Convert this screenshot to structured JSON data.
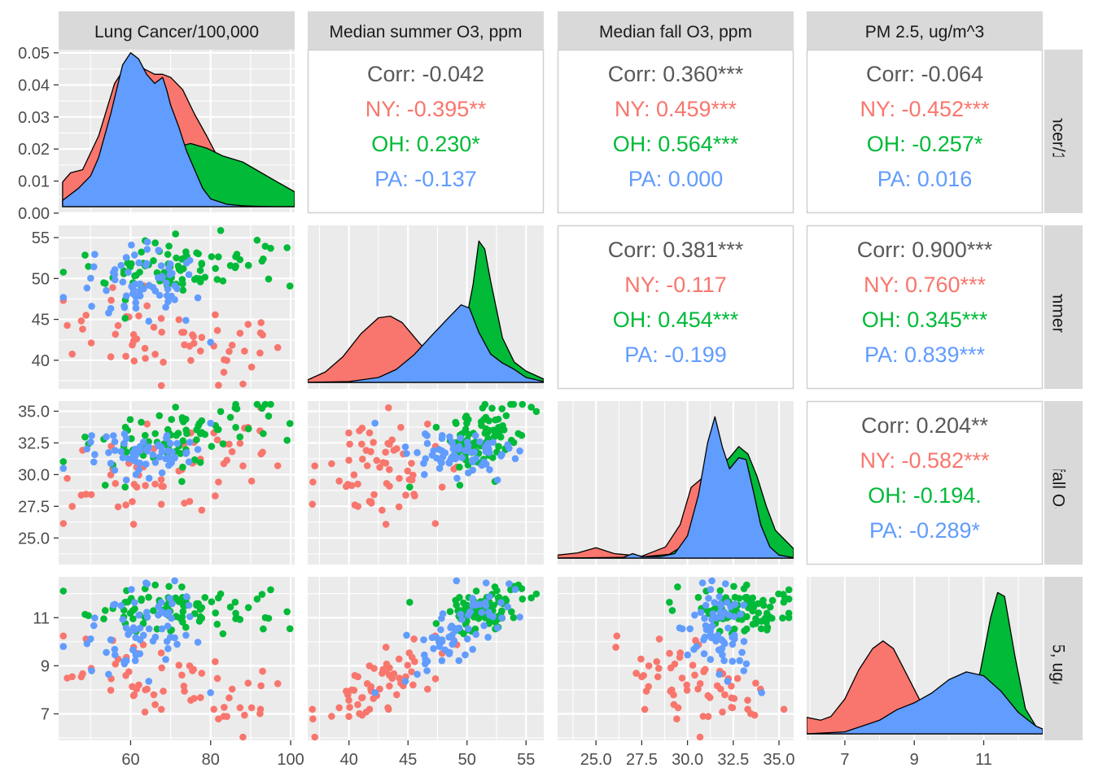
{
  "chart_data": {
    "type": "scatter",
    "figure_type": "pairs-matrix",
    "background": "#ffffff",
    "panel_background": "#ebebeb",
    "strip_background": "#d9d9d9",
    "gridline_color": "#ffffff",
    "grid": true,
    "legend": "none",
    "group_colors": {
      "NY": "#F8766D",
      "OH": "#00BA38",
      "PA": "#619CFF",
      "overall": "#595959"
    },
    "variables": [
      "Lung Cancer/100,000",
      "Median summer O3, ppm",
      "Median fall O3, ppm",
      "PM 2.5, ug/m^3"
    ],
    "variable_axes": [
      {
        "range": [
          42,
          101
        ],
        "ticks": [
          60,
          80,
          100
        ],
        "tick_labels": [
          "60",
          "80",
          "100"
        ]
      },
      {
        "range": [
          36.5,
          56.5
        ],
        "ticks": [
          40,
          45,
          50,
          55
        ],
        "tick_labels": [
          "40",
          "45",
          "50",
          "55"
        ]
      },
      {
        "range": [
          22.9,
          35.8
        ],
        "ticks": [
          25.0,
          27.5,
          30.0,
          32.5,
          35.0
        ],
        "tick_labels": [
          "25.0",
          "27.5",
          "30.0",
          "32.5",
          "35.0"
        ]
      },
      {
        "range": [
          5.9,
          12.7
        ],
        "ticks": [
          7,
          9,
          11
        ],
        "tick_labels": [
          "7",
          "9",
          "11"
        ]
      }
    ],
    "density_y_axis": {
      "range": [
        0,
        0.051
      ],
      "ticks": [
        0.0,
        0.01,
        0.02,
        0.03,
        0.04,
        0.05
      ],
      "tick_labels": [
        "0.00",
        "0.01",
        "0.02",
        "0.03",
        "0.04",
        "0.05"
      ]
    },
    "correlations": [
      {
        "row": 0,
        "col": 1,
        "lines": [
          {
            "group": "overall",
            "text": "Corr: -0.042"
          },
          {
            "group": "NY",
            "text": "NY: -0.395**"
          },
          {
            "group": "OH",
            "text": "OH: 0.230*"
          },
          {
            "group": "PA",
            "text": "PA: -0.137"
          }
        ]
      },
      {
        "row": 0,
        "col": 2,
        "lines": [
          {
            "group": "overall",
            "text": "Corr: 0.360***"
          },
          {
            "group": "NY",
            "text": "NY: 0.459***"
          },
          {
            "group": "OH",
            "text": "OH: 0.564***"
          },
          {
            "group": "PA",
            "text": "PA: 0.000"
          }
        ]
      },
      {
        "row": 0,
        "col": 3,
        "lines": [
          {
            "group": "overall",
            "text": "Corr: -0.064"
          },
          {
            "group": "NY",
            "text": "NY: -0.452***"
          },
          {
            "group": "OH",
            "text": "OH: -0.257*"
          },
          {
            "group": "PA",
            "text": "PA: 0.016"
          }
        ]
      },
      {
        "row": 1,
        "col": 2,
        "lines": [
          {
            "group": "overall",
            "text": "Corr: 0.381***"
          },
          {
            "group": "NY",
            "text": "NY: -0.117"
          },
          {
            "group": "OH",
            "text": "OH: 0.454***"
          },
          {
            "group": "PA",
            "text": "PA: -0.199"
          }
        ]
      },
      {
        "row": 1,
        "col": 3,
        "lines": [
          {
            "group": "overall",
            "text": "Corr: 0.900***"
          },
          {
            "group": "NY",
            "text": "NY: 0.760***"
          },
          {
            "group": "OH",
            "text": "OH: 0.345***"
          },
          {
            "group": "PA",
            "text": "PA: 0.839***"
          }
        ]
      },
      {
        "row": 2,
        "col": 3,
        "lines": [
          {
            "group": "overall",
            "text": "Corr: 0.204**"
          },
          {
            "group": "NY",
            "text": "NY: -0.582***"
          },
          {
            "group": "OH",
            "text": "OH: -0.194."
          },
          {
            "group": "PA",
            "text": "PA: -0.289*"
          }
        ]
      }
    ],
    "densities": [
      {
        "var": 0,
        "series": [
          {
            "group": "NY",
            "x": [
              43,
              45,
              48,
              52,
              56,
              60,
              63,
              66,
              68,
              70,
              73,
              76,
              79,
              81,
              84,
              88,
              92,
              96,
              101
            ],
            "y": [
              0.008,
              0.011,
              0.012,
              0.023,
              0.04,
              0.048,
              0.045,
              0.043,
              0.043,
              0.042,
              0.038,
              0.03,
              0.023,
              0.018,
              0.012,
              0.008,
              0.005,
              0.003,
              0.001
            ]
          },
          {
            "group": "OH",
            "x": [
              43,
              47,
              50,
              53,
              57,
              61,
              65,
              69,
              72,
              75,
              79,
              83,
              88,
              92,
              96,
              101
            ],
            "y": [
              0.0,
              0.001,
              0.004,
              0.007,
              0.01,
              0.012,
              0.014,
              0.016,
              0.0195,
              0.0205,
              0.019,
              0.0165,
              0.0145,
              0.0115,
              0.0085,
              0.0048
            ]
          },
          {
            "group": "PA",
            "x": [
              43,
              47,
              50,
              52,
              55,
              58,
              60,
              62,
              64,
              66,
              67,
              68,
              69,
              70,
              72,
              74,
              76,
              78,
              80,
              84,
              88,
              92,
              96,
              101
            ],
            "y": [
              0.002,
              0.006,
              0.01,
              0.016,
              0.03,
              0.046,
              0.05,
              0.048,
              0.043,
              0.04,
              0.041,
              0.042,
              0.038,
              0.033,
              0.026,
              0.018,
              0.012,
              0.006,
              0.0025,
              0.0008,
              0.0003,
              0.0001,
              0.0,
              0.0
            ]
          }
        ]
      },
      {
        "var": 1,
        "series": [
          {
            "group": "NY",
            "x": [
              36.5,
              38,
              39.5,
              41,
              42.5,
              43.5,
              44.5,
              46,
              47.5,
              49,
              50.5,
              52,
              54,
              56.5
            ],
            "y": [
              0.003,
              0.013,
              0.032,
              0.06,
              0.08,
              0.082,
              0.074,
              0.048,
              0.025,
              0.012,
              0.006,
              0.002,
              0.0005,
              0.0
            ]
          },
          {
            "group": "OH",
            "x": [
              36.5,
              42,
              45,
              47,
              48.5,
              49.5,
              50.5,
              51,
              51.5,
              52,
              53,
              54,
              55,
              56.5
            ],
            "y": [
              0.0,
              0.0,
              0.002,
              0.008,
              0.02,
              0.045,
              0.12,
              0.175,
              0.165,
              0.125,
              0.055,
              0.025,
              0.014,
              0.004
            ]
          },
          {
            "group": "PA",
            "x": [
              36.5,
              40,
              42.5,
              44,
              45.5,
              47,
              48.5,
              49.5,
              50.2,
              51,
              52,
              53,
              54,
              55,
              56.5
            ],
            "y": [
              0.0,
              0.001,
              0.006,
              0.016,
              0.034,
              0.058,
              0.081,
              0.096,
              0.092,
              0.062,
              0.035,
              0.024,
              0.016,
              0.006,
              0.001
            ]
          }
        ]
      },
      {
        "var": 2,
        "series": [
          {
            "group": "NY",
            "x": [
              22.9,
              24,
              25,
              26,
              27.5,
              28.8,
              29.6,
              30.2,
              30.8,
              31.2,
              31.6,
              32,
              32.6,
              33.2,
              33.8,
              34.5,
              35.8
            ],
            "y": [
              0.008,
              0.014,
              0.028,
              0.012,
              0.005,
              0.03,
              0.09,
              0.19,
              0.215,
              0.22,
              0.23,
              0.205,
              0.16,
              0.1,
              0.06,
              0.03,
              0.006
            ]
          },
          {
            "group": "OH",
            "x": [
              22.9,
              27,
              29,
              30,
              30.8,
              31.3,
              31.8,
              32.3,
              32.8,
              33.3,
              33.8,
              34.3,
              34.8,
              35.8
            ],
            "y": [
              0.0,
              0.001,
              0.01,
              0.04,
              0.11,
              0.2,
              0.25,
              0.27,
              0.3,
              0.28,
              0.22,
              0.14,
              0.075,
              0.025
            ]
          },
          {
            "group": "PA",
            "x": [
              22.9,
              26.5,
              27,
              27.5,
              28.5,
              29.3,
              30,
              30.6,
              31.1,
              31.5,
              31.9,
              32.3,
              32.8,
              33.2,
              33.6,
              34,
              34.5,
              35,
              35.8
            ],
            "y": [
              0.0,
              0.002,
              0.012,
              0.004,
              0.004,
              0.012,
              0.06,
              0.17,
              0.31,
              0.38,
              0.3,
              0.24,
              0.27,
              0.265,
              0.18,
              0.09,
              0.03,
              0.008,
              0.001
            ]
          }
        ]
      },
      {
        "var": 3,
        "series": [
          {
            "group": "NY",
            "x": [
              5.9,
              6.3,
              6.6,
              7.0,
              7.4,
              7.8,
              8.1,
              8.4,
              8.8,
              9.2,
              9.7,
              10.3,
              11,
              11.8,
              12.7
            ],
            "y": [
              0.085,
              0.07,
              0.09,
              0.18,
              0.33,
              0.44,
              0.48,
              0.44,
              0.3,
              0.16,
              0.08,
              0.03,
              0.01,
              0.003,
              0.001
            ]
          },
          {
            "group": "OH",
            "x": [
              5.9,
              9.5,
              10,
              10.5,
              10.9,
              11.2,
              11.4,
              11.6,
              11.9,
              12.2,
              12.5,
              12.7
            ],
            "y": [
              0.0,
              0.003,
              0.03,
              0.11,
              0.32,
              0.6,
              0.73,
              0.71,
              0.4,
              0.13,
              0.04,
              0.02
            ]
          },
          {
            "group": "PA",
            "x": [
              5.9,
              7,
              8,
              8.5,
              9,
              9.5,
              10,
              10.5,
              11,
              11.5,
              12,
              12.5,
              12.7
            ],
            "y": [
              0.0,
              0.01,
              0.07,
              0.125,
              0.16,
              0.21,
              0.28,
              0.32,
              0.3,
              0.22,
              0.11,
              0.04,
              0.025
            ]
          }
        ]
      }
    ]
  }
}
